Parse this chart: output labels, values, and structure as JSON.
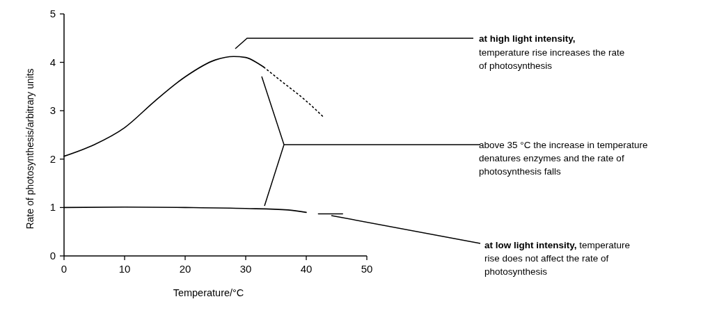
{
  "chart_data": {
    "type": "line",
    "xlabel": "Temperature/°C",
    "ylabel": "Rate of photosynthesis/arbitrary units",
    "xlim": [
      0,
      50
    ],
    "ylim": [
      0,
      5
    ],
    "xticks": [
      0,
      10,
      20,
      30,
      40,
      50
    ],
    "yticks": [
      0,
      1,
      2,
      3,
      4,
      5
    ],
    "grid": false,
    "marker": "none",
    "series": [
      {
        "color": "#000000",
        "line_style": "solid",
        "x": [
          0,
          5,
          10,
          15,
          20,
          25,
          28,
          30,
          32,
          33
        ],
        "values": [
          2.06,
          2.3,
          2.65,
          3.2,
          3.7,
          4.05,
          4.12,
          4.1,
          3.98,
          3.9
        ]
      },
      {
        "color": "#000000",
        "line_style": "dotted",
        "x": [
          33,
          36,
          40,
          43
        ],
        "values": [
          3.9,
          3.6,
          3.2,
          2.85
        ]
      },
      {
        "color": "#000000",
        "line_style": "solid",
        "x": [
          0,
          10,
          20,
          30,
          37,
          40,
          41,
          42,
          46
        ],
        "values": [
          1.0,
          1.01,
          1.0,
          0.98,
          0.95,
          0.9,
          null,
          0.87,
          0.87
        ]
      }
    ],
    "annotations": [
      "at high light intensity,",
      "temperature rise increases the rate\nof photosynthesis",
      "above 35 °C the increase in temperature\ndenatures enzymes and the rate of\nphotosynthesis falls",
      "at low light intensity,",
      "temperature\nrise does not affect the rate of\nphotosynthesis"
    ]
  }
}
